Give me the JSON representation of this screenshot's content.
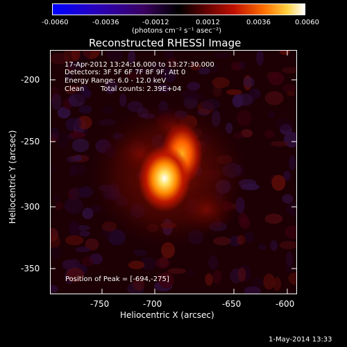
{
  "colorbar": {
    "ticks": [
      "-0.0060",
      "-0.0036",
      "-0.0012",
      "0.0012",
      "0.0036",
      "0.0060"
    ],
    "unit_label": "(photons cm⁻² s⁻¹ asec⁻²)"
  },
  "title": "Reconstructed RHESSI Image",
  "info": {
    "time_range": "17-Apr-2012 13:24:16.000 to 13:27:30.000",
    "detectors": "Detectors: 3F 5F 6F 7F 8F 9F, Att 0",
    "energy": "Energy Range: 6.0 - 12.0 keV",
    "algorithm": "Clean",
    "counts": "Total counts: 2.39E+04"
  },
  "peak": "Position of Peak = [-694,-275]",
  "axes": {
    "xlabel": "Heliocentric X (arcsec)",
    "ylabel": "Heliocentric Y (arcsec)",
    "xticks": [
      "-750",
      "-700",
      "-650",
      "-600"
    ],
    "yticks": [
      "-200",
      "-250",
      "-300",
      "-350"
    ]
  },
  "timestamp": "1-May-2014 13:33"
}
